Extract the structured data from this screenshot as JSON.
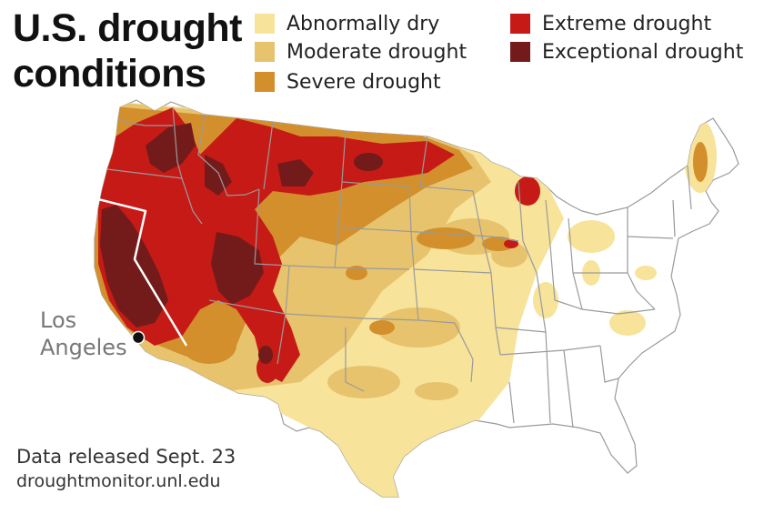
{
  "title": {
    "line1": "U.S. drought",
    "line2": "conditions"
  },
  "legend": {
    "items": [
      {
        "label": "Abnormally dry",
        "color": "#f7e39a"
      },
      {
        "label": "Moderate drought",
        "color": "#e8c36d"
      },
      {
        "label": "Severe drought",
        "color": "#d28f2c"
      },
      {
        "label": "Extreme drought",
        "color": "#c61a16"
      },
      {
        "label": "Exceptional drought",
        "color": "#731b1b"
      }
    ]
  },
  "city": {
    "line1": "Los",
    "line2": "Angeles"
  },
  "footer": {
    "release": "Data released Sept. 23",
    "source": "droughtmonitor.unl.edu"
  },
  "colors": {
    "state_border": "#9a9a9a",
    "california_border": "#ffffff",
    "city_marker": "#111111"
  }
}
